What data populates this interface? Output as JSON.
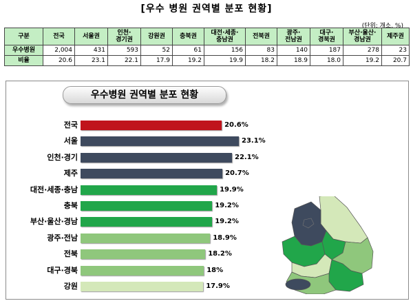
{
  "page_title": "[우수 병원 권역별 분포 현황]",
  "unit_note": "(단위: 개소, %)",
  "table": {
    "corner": "구분",
    "columns": [
      "전국",
      "서울권",
      "인천·\n경기권",
      "강원권",
      "충북권",
      "대전·세종·\n충남권",
      "전북권",
      "광주·\n전남권",
      "대구·\n경북권",
      "부산·울산·\n경남권",
      "제주권"
    ],
    "rows": [
      {
        "label": "우수병원",
        "values": [
          "2,004",
          "431",
          "593",
          "52",
          "61",
          "156",
          "83",
          "140",
          "187",
          "278",
          "23"
        ]
      },
      {
        "label": "비율",
        "values": [
          "20.6",
          "23.1",
          "22.1",
          "17.9",
          "19.2",
          "19.9",
          "18.2",
          "18.9",
          "18.0",
          "19.2",
          "20.7"
        ]
      }
    ]
  },
  "chart_data": {
    "type": "bar",
    "orientation": "horizontal",
    "title": "우수병원 권역별 분포 현황",
    "categories": [
      "전국",
      "서울",
      "인천·경기",
      "제주",
      "대전·세종·충남",
      "충북",
      "부산·울산·경남",
      "광주·전남",
      "전북",
      "대구·경북",
      "강원"
    ],
    "values": [
      20.6,
      23.1,
      22.1,
      20.7,
      19.9,
      19.2,
      19.2,
      18.9,
      18.2,
      18.0,
      17.9
    ],
    "value_labels": [
      "20.6%",
      "23.1%",
      "22.1%",
      "20.7%",
      "19.9%",
      "19.2%",
      "19.2%",
      "18.9%",
      "18.2%",
      "18%",
      "17.9%"
    ],
    "bar_colors": [
      "#c0141c",
      "#3e4a5e",
      "#3e4a5e",
      "#3e4a5e",
      "#21a64a",
      "#21a64a",
      "#21a64a",
      "#8fc77c",
      "#8fc77c",
      "#8fc77c",
      "#d4e8b9"
    ],
    "xlim": [
      0,
      23.1
    ],
    "grid": false,
    "legend": "none"
  },
  "map_colors": {
    "dark": "#3e4a5e",
    "green": "#21a64a",
    "mid_green": "#8fc77c",
    "light_green": "#d4e8b9"
  }
}
